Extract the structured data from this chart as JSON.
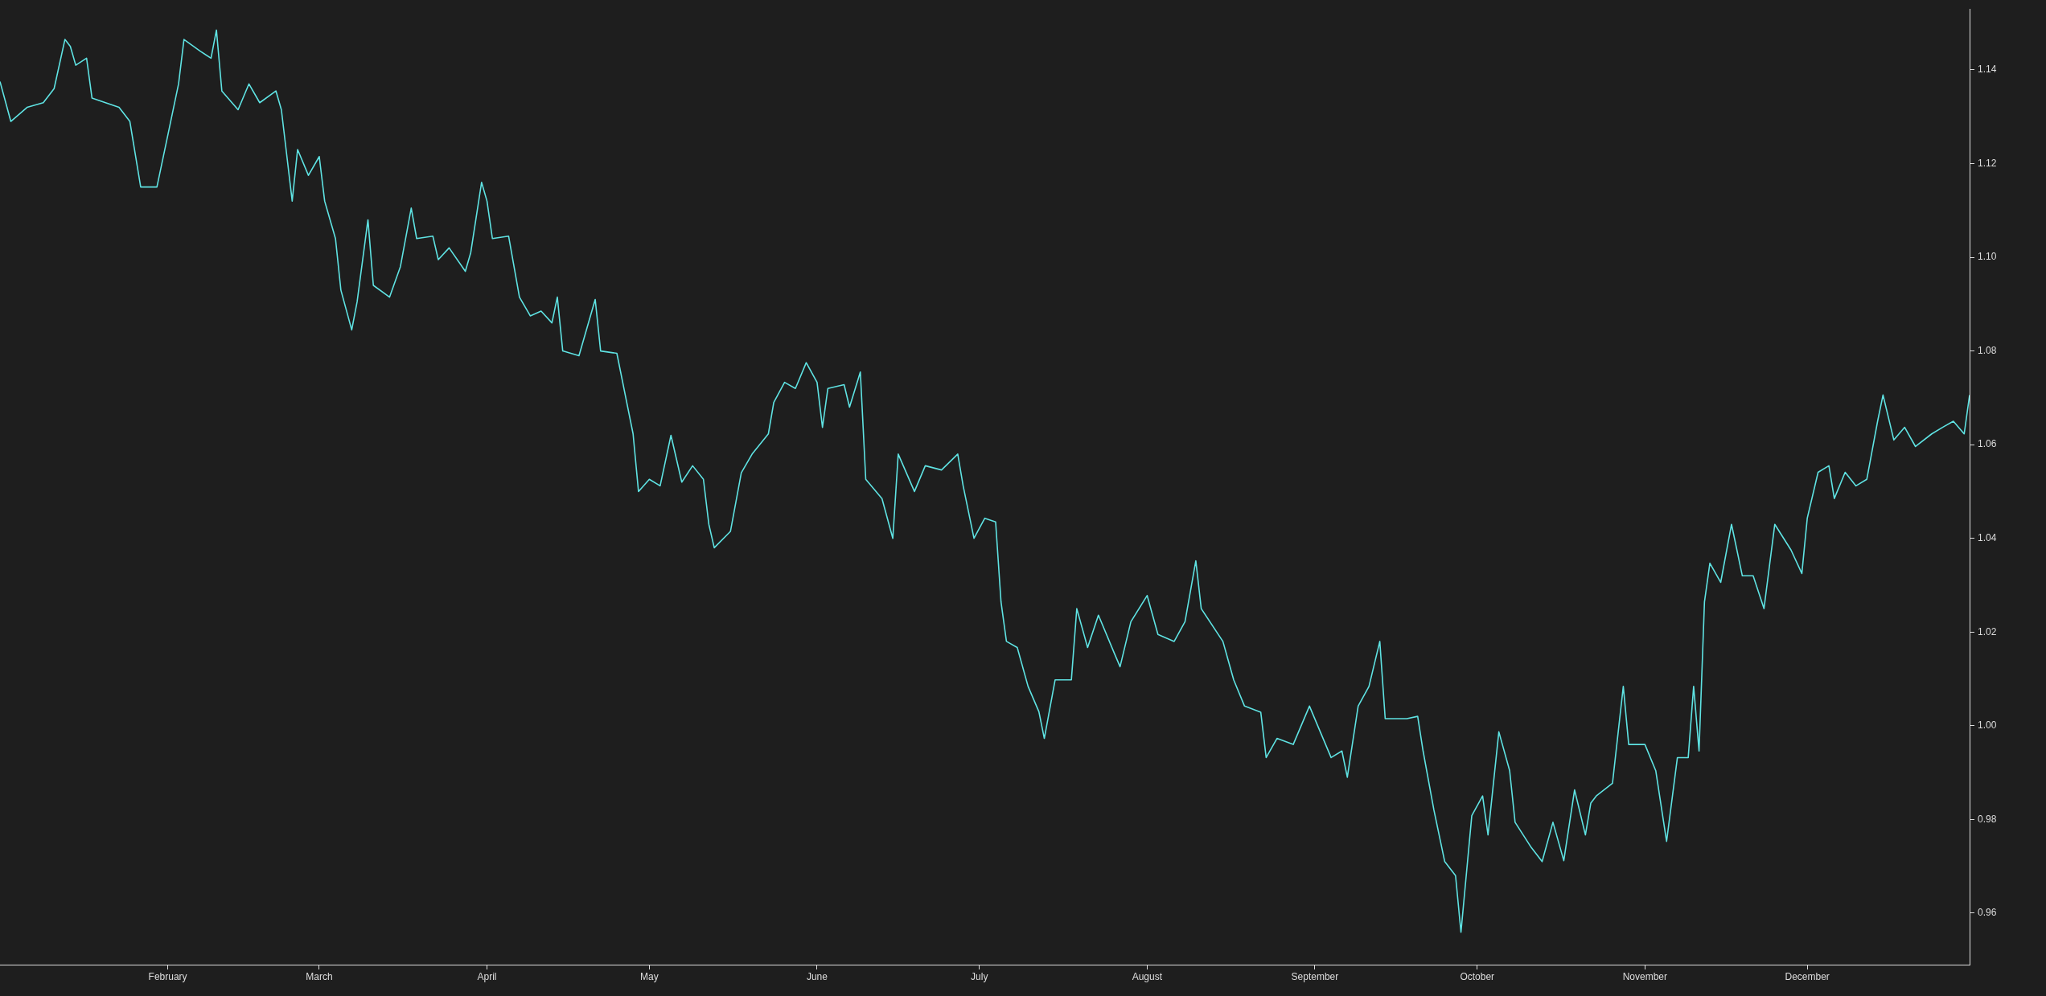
{
  "chart_data": {
    "type": "line",
    "color": "#5fe3e3",
    "grid": false,
    "marker": "none",
    "x": [
      "--01-01",
      "--01-03",
      "--01-06",
      "--01-09",
      "--01-11",
      "--01-13",
      "--01-14",
      "--01-15",
      "--01-17",
      "--01-18",
      "--01-23",
      "--01-25",
      "--01-27",
      "--01-30",
      "--02-01",
      "--02-03",
      "--02-04",
      "--02-07",
      "--02-09",
      "--02-10",
      "--02-11",
      "--02-14",
      "--02-16",
      "--02-18",
      "--02-21",
      "--02-22",
      "--02-24",
      "--02-25",
      "--02-27",
      "--03-01",
      "--03-02",
      "--03-04",
      "--03-05",
      "--03-07",
      "--03-08",
      "--03-10",
      "--03-11",
      "--03-14",
      "--03-16",
      "--03-18",
      "--03-19",
      "--03-22",
      "--03-23",
      "--03-25",
      "--03-28",
      "--03-29",
      "--03-31",
      "--04-01",
      "--04-02",
      "--04-05",
      "--04-07",
      "--04-09",
      "--04-11",
      "--04-13",
      "--04-14",
      "--04-15",
      "--04-18",
      "--04-21",
      "--04-22",
      "--04-25",
      "--04-28",
      "--04-29",
      "--05-01",
      "--05-03",
      "--05-05",
      "--05-07",
      "--05-09",
      "--05-11",
      "--05-12",
      "--05-13",
      "--05-16",
      "--05-18",
      "--05-20",
      "--05-23",
      "--05-24",
      "--05-26",
      "--05-28",
      "--05-30",
      "--06-01",
      "--06-02",
      "--06-03",
      "--06-06",
      "--06-07",
      "--06-09",
      "--06-10",
      "--06-13",
      "--06-15",
      "--06-16",
      "--06-19",
      "--06-21",
      "--06-24",
      "--06-27",
      "--06-28",
      "--06-30",
      "--07-02",
      "--07-04",
      "--07-05",
      "--07-06",
      "--07-08",
      "--07-10",
      "--07-12",
      "--07-13",
      "--07-15",
      "--07-18",
      "--07-19",
      "--07-21",
      "--07-23",
      "--07-26",
      "--07-27",
      "--07-29",
      "--08-01",
      "--08-03",
      "--08-06",
      "--08-08",
      "--08-10",
      "--08-11",
      "--08-15",
      "--08-17",
      "--08-19",
      "--08-22",
      "--08-23",
      "--08-25",
      "--08-28",
      "--08-31",
      "--09-02",
      "--09-04",
      "--09-06",
      "--09-07",
      "--09-09",
      "--09-11",
      "--09-13",
      "--09-14",
      "--09-18",
      "--09-20",
      "--09-21",
      "--09-23",
      "--09-25",
      "--09-27",
      "--09-28",
      "--09-30",
      "--10-02",
      "--10-03",
      "--10-05",
      "--10-07",
      "--10-08",
      "--10-11",
      "--10-13",
      "--10-15",
      "--10-17",
      "--10-19",
      "--10-21",
      "--10-22",
      "--10-23",
      "--10-26",
      "--10-28",
      "--10-29",
      "--11-01",
      "--11-03",
      "--11-05",
      "--11-07",
      "--11-09",
      "--11-10",
      "--11-11",
      "--11-12",
      "--11-13",
      "--11-15",
      "--11-17",
      "--11-19",
      "--11-21",
      "--11-23",
      "--11-25",
      "--11-28",
      "--11-30",
      "--12-01",
      "--12-03",
      "--12-05",
      "--12-06",
      "--12-08",
      "--12-10",
      "--12-12",
      "--12-14",
      "--12-15",
      "--12-17",
      "--12-19",
      "--12-21",
      "--12-24",
      "--12-26",
      "--12-28",
      "--12-30",
      "--12-31"
    ],
    "values": [
      1.1375,
      1.129,
      1.132,
      1.133,
      1.136,
      1.1465,
      1.145,
      1.141,
      1.1425,
      1.134,
      1.132,
      1.129,
      1.115,
      1.115,
      1.126,
      1.137,
      1.1465,
      1.144,
      1.1425,
      1.1485,
      1.1355,
      1.1315,
      1.137,
      1.133,
      1.1355,
      1.1315,
      1.112,
      1.123,
      1.1175,
      1.1215,
      1.112,
      1.104,
      1.093,
      1.0845,
      1.0905,
      1.108,
      1.094,
      1.0915,
      1.098,
      1.1105,
      1.104,
      1.1045,
      1.0995,
      1.102,
      1.097,
      1.101,
      1.116,
      1.112,
      1.104,
      1.1045,
      1.0915,
      1.0875,
      1.0885,
      1.086,
      1.0915,
      1.08,
      1.079,
      1.091,
      1.08,
      1.0795,
      1.0623,
      1.05,
      1.0526,
      1.0512,
      1.062,
      1.052,
      1.0555,
      1.0526,
      1.043,
      1.038,
      1.0415,
      1.054,
      1.058,
      1.0623,
      1.069,
      1.0733,
      1.072,
      1.0775,
      1.0733,
      1.0637,
      1.072,
      1.0728,
      1.068,
      1.0755,
      1.0526,
      1.0485,
      1.04,
      1.058,
      1.05,
      1.0555,
      1.0546,
      1.058,
      1.0512,
      1.04,
      1.0443,
      1.0435,
      1.0264,
      1.018,
      1.0167,
      1.0084,
      1.003,
      0.9973,
      1.0098,
      1.0098,
      1.025,
      1.0167,
      1.0236,
      1.0153,
      1.0126,
      1.0222,
      1.0278,
      1.0195,
      1.018,
      1.0222,
      1.0352,
      1.025,
      1.018,
      1.0098,
      1.0042,
      1.0029,
      0.9932,
      0.9973,
      0.996,
      1.0042,
      0.9987,
      0.9932,
      0.9946,
      0.989,
      1.0042,
      1.0084,
      1.018,
      1.0015,
      1.0015,
      1.002,
      0.9946,
      0.982,
      0.971,
      0.968,
      0.9559,
      0.9808,
      0.985,
      0.9767,
      0.9987,
      0.9904,
      0.9794,
      0.974,
      0.971,
      0.9794,
      0.9712,
      0.9863,
      0.9767,
      0.9835,
      0.985,
      0.9877,
      1.0084,
      0.996,
      0.996,
      0.9904,
      0.9753,
      0.9932,
      0.9932,
      1.0084,
      0.9946,
      1.0264,
      1.0347,
      1.0306,
      1.043,
      1.032,
      1.032,
      1.025,
      1.043,
      1.0375,
      1.0325,
      1.0443,
      1.0541,
      1.0555,
      1.0485,
      1.0541,
      1.0512,
      1.0526,
      1.065,
      1.0706,
      1.061,
      1.0637,
      1.0596,
      1.0623,
      1.0637,
      1.065,
      1.0623,
      1.0706
    ],
    "xlim": [
      "--01-01",
      "--12-31"
    ],
    "xticks": [
      {
        "value": "--02-01",
        "label": "February"
      },
      {
        "value": "--03-01",
        "label": "March"
      },
      {
        "value": "--04-01",
        "label": "April"
      },
      {
        "value": "--05-01",
        "label": "May"
      },
      {
        "value": "--06-01",
        "label": "June"
      },
      {
        "value": "--07-01",
        "label": "July"
      },
      {
        "value": "--08-01",
        "label": "August"
      },
      {
        "value": "--09-01",
        "label": "September"
      },
      {
        "value": "--10-01",
        "label": "October"
      },
      {
        "value": "--11-01",
        "label": "November"
      },
      {
        "value": "--12-01",
        "label": "December"
      }
    ],
    "ylim": [
      0.949,
      1.153
    ],
    "yticks": [
      0.96,
      0.98,
      {
        "value": 1.0,
        "label": "1.00"
      },
      1.02,
      1.04,
      1.06,
      1.08,
      {
        "value": 1.1,
        "label": "1.10"
      },
      1.12,
      1.14
    ]
  }
}
